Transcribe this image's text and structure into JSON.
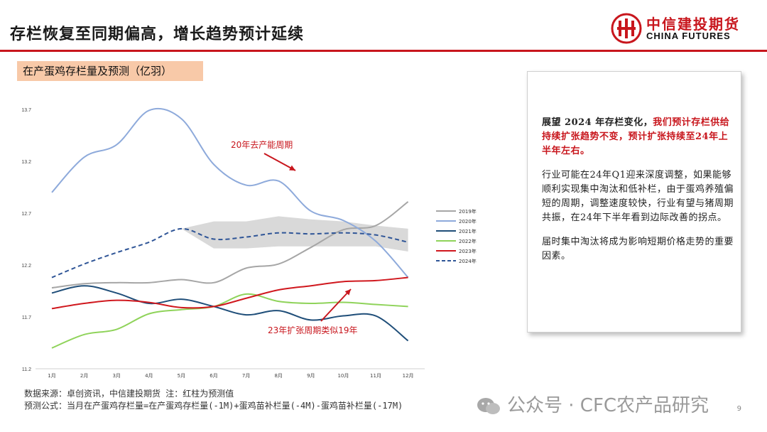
{
  "header": {
    "title": "存栏恢复至同期偏高，增长趋势预计延续",
    "logo_cn": "中信建投期货",
    "logo_en": "CHINA FUTURES"
  },
  "chart_label": "在产蛋鸡存栏量及预测（亿羽）",
  "chart_data": {
    "type": "line",
    "categories": [
      "1月",
      "2月",
      "3月",
      "4月",
      "5月",
      "6月",
      "7月",
      "8月",
      "9月",
      "10月",
      "11月",
      "12月"
    ],
    "y_ticks": [
      "13.7",
      "13.2",
      "12.7",
      "12.2",
      "11.7",
      "11.2"
    ],
    "ylim": [
      11.2,
      13.7
    ],
    "grid": false,
    "legend_position": "right",
    "series": [
      {
        "name": "2019年",
        "color": "#a6a6a6",
        "dashed": false,
        "values": [
          11.98,
          12.02,
          12.03,
          12.03,
          12.06,
          12.03,
          12.17,
          12.21,
          12.37,
          12.54,
          12.58,
          12.81
        ]
      },
      {
        "name": "2020年",
        "color": "#8eaadb",
        "dashed": false,
        "values": [
          12.9,
          13.24,
          13.36,
          13.69,
          13.61,
          13.17,
          12.97,
          13.01,
          12.72,
          12.63,
          12.43,
          12.08
        ]
      },
      {
        "name": "2021年",
        "color": "#1f4e79",
        "dashed": false,
        "values": [
          11.93,
          12.0,
          11.93,
          11.83,
          11.87,
          11.8,
          11.72,
          11.76,
          11.67,
          11.71,
          11.71,
          11.47
        ]
      },
      {
        "name": "2022年",
        "color": "#8fd35a",
        "dashed": false,
        "values": [
          11.4,
          11.53,
          11.58,
          11.73,
          11.77,
          11.8,
          11.92,
          11.85,
          11.83,
          11.84,
          11.82,
          11.8
        ]
      },
      {
        "name": "2023年",
        "color": "#d0181e",
        "dashed": false,
        "values": [
          11.78,
          11.83,
          11.86,
          11.84,
          11.79,
          11.8,
          11.88,
          11.96,
          12.0,
          12.04,
          12.05,
          12.08
        ]
      },
      {
        "name": "2024年",
        "color": "#2f5597",
        "dashed": true,
        "values": [
          12.08,
          12.21,
          12.32,
          12.42,
          12.55,
          12.45,
          12.47,
          12.51,
          12.5,
          12.51,
          12.49,
          12.42
        ]
      }
    ],
    "band": {
      "from_index": 4,
      "upper": [
        12.55,
        12.62,
        12.62,
        12.67,
        12.64,
        12.62,
        12.58,
        12.55
      ],
      "lower": [
        12.55,
        12.36,
        12.36,
        12.38,
        12.38,
        12.38,
        12.38,
        12.33
      ]
    },
    "annotations": [
      {
        "text": "20年去产能周期",
        "color": "#c8161d"
      },
      {
        "text": "23年扩张周期类似19年",
        "color": "#c8161d"
      }
    ]
  },
  "side_panel": {
    "p1_lead": "展望 2024 年存栏变化，",
    "p1_highlight": "我们预计存栏供给持续扩张趋势不变，预计扩张持续至24年上半年左右。",
    "p2": "行业可能在24年Q1迎来深度调整，如果能够顺利实现集中淘汰和低补栏，由于蛋鸡养殖偏短的周期，调整速度较快，行业有望与猪周期共振，在24年下半年看到边际改善的拐点。",
    "p3": "届时集中淘汰将成为影响短期价格走势的重要因素。"
  },
  "source": {
    "line1": "数据来源：卓创资讯，中信建投期货 注：红柱为预测值",
    "line2": "预测公式：当月在产蛋鸡存栏量=在产蛋鸡存栏量(-1M)+蛋鸡苗补栏量(-4M)-蛋鸡苗补栏量(-17M)"
  },
  "watermark": "公众号 · CFC农产品研究",
  "page_number": "9"
}
